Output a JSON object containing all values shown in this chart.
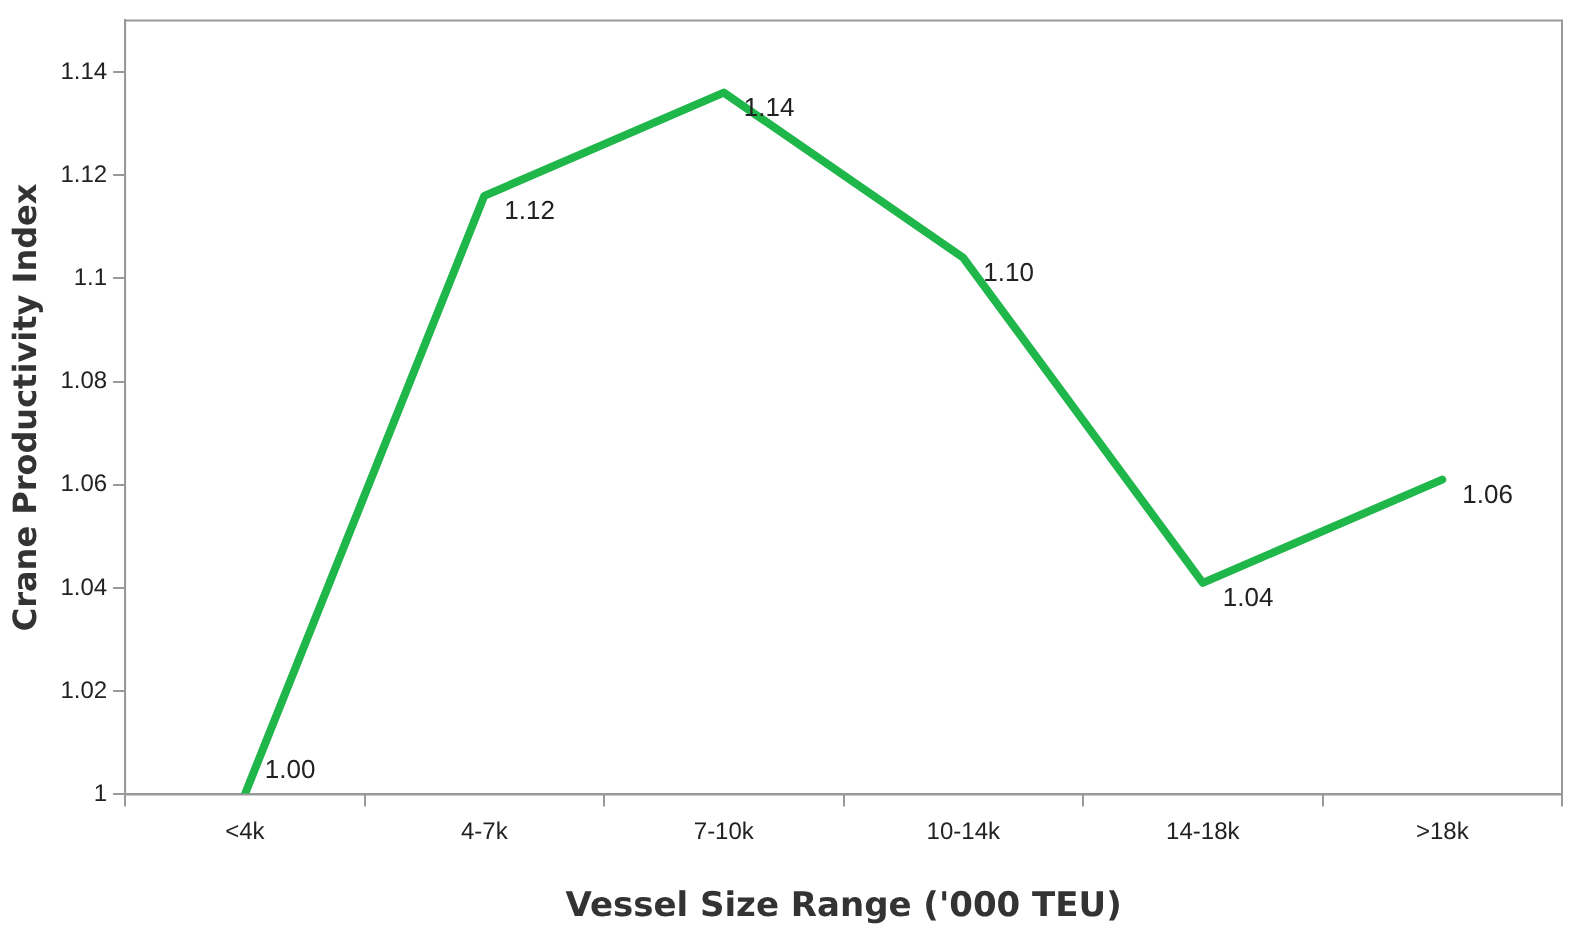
{
  "chart_data": {
    "type": "line",
    "xlabel": "Vessel Size Range ('000 TEU)",
    "ylabel": "Crane Productivity Index",
    "categories": [
      "<4k",
      "4-7k",
      "7-10k",
      "10-14k",
      "14-18k",
      ">18k"
    ],
    "series": [
      {
        "color": "#1fb64a",
        "values": [
          1.0,
          1.116,
          1.136,
          1.104,
          1.041,
          1.061
        ],
        "value_labels": [
          "1.00",
          "1.12",
          "1.14",
          "1.10",
          "1.04",
          "1.06"
        ]
      }
    ],
    "ylim": [
      1,
      1.15
    ],
    "yticks": [
      1,
      1.02,
      1.04,
      1.06,
      1.08,
      {
        "value": 1.1,
        "label": "1.1"
      },
      1.12,
      1.14
    ],
    "grid": false,
    "legend": false,
    "marker": "none",
    "line_style": "solid"
  }
}
